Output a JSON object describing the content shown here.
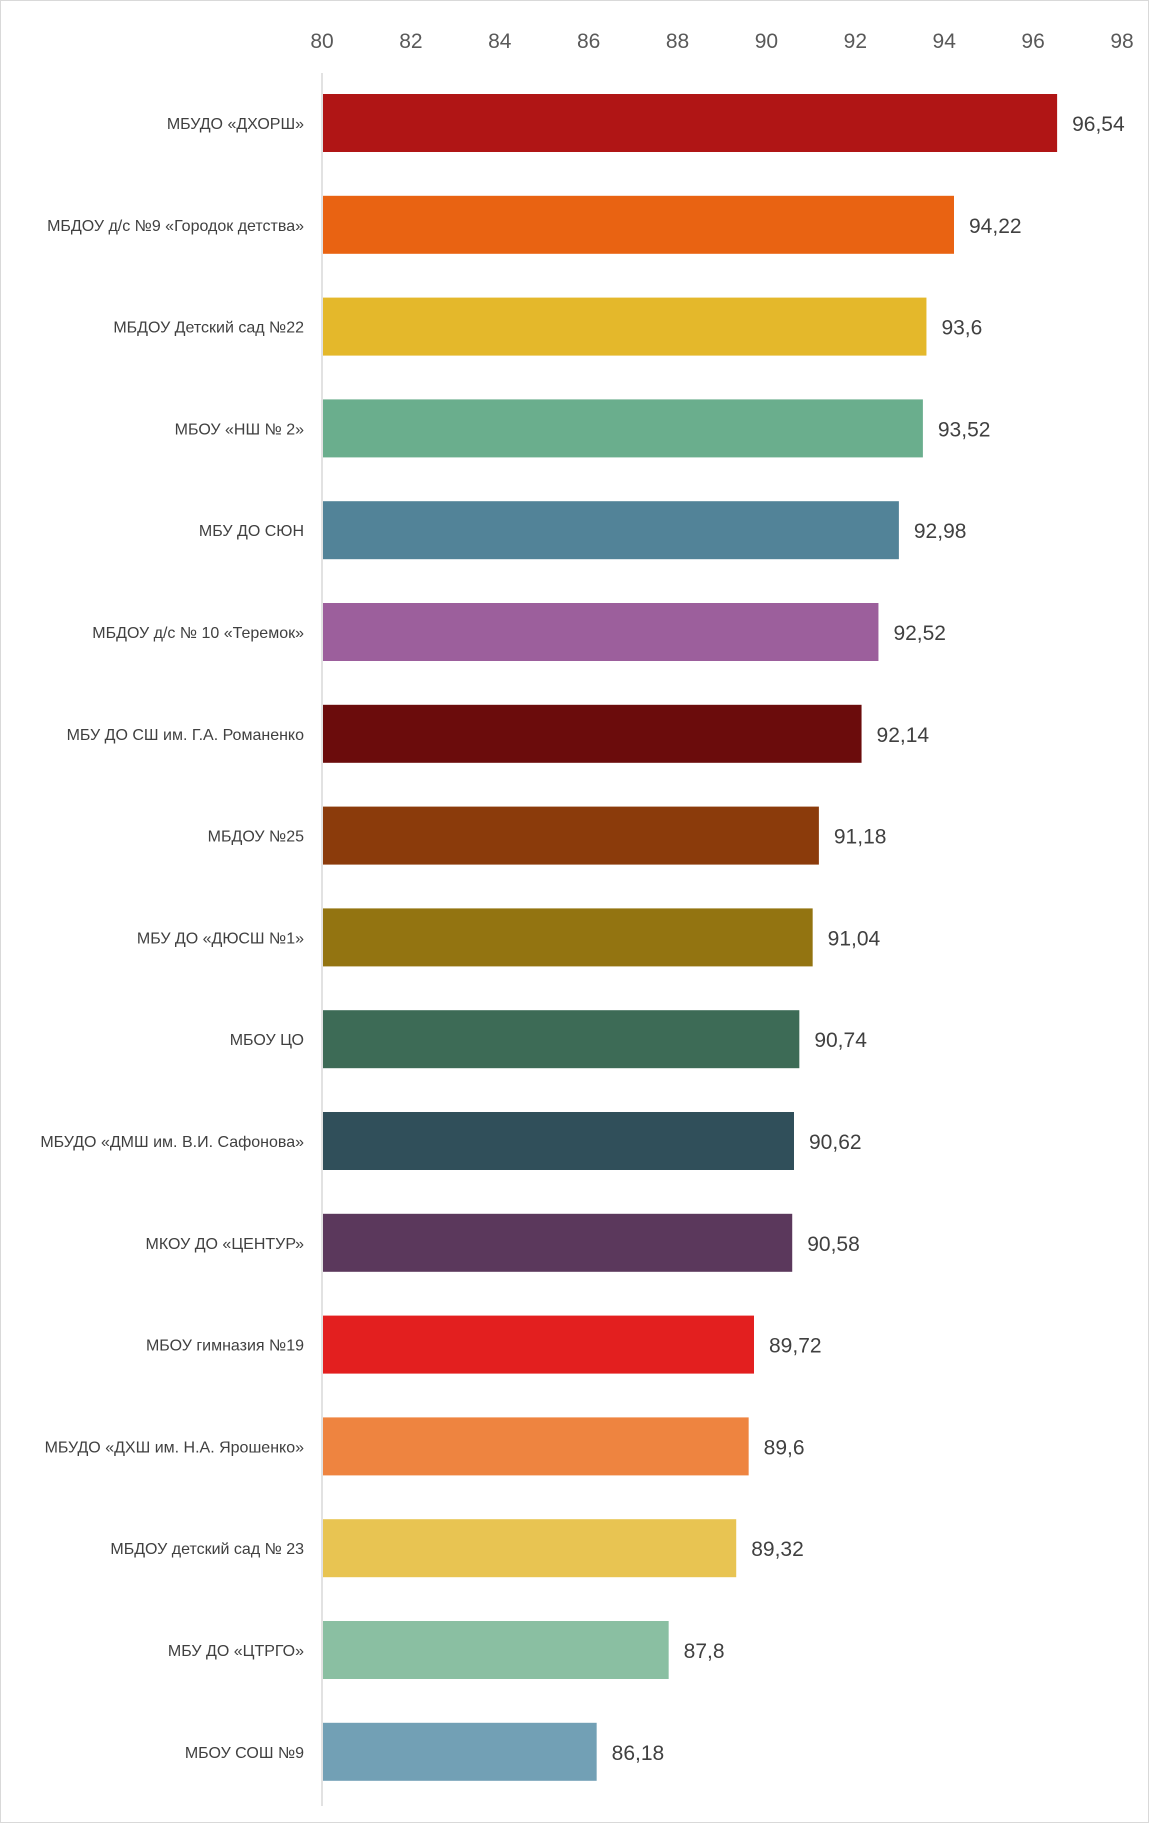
{
  "chart_data": {
    "type": "bar",
    "orientation": "horizontal",
    "title": "",
    "xlabel": "",
    "ylabel": "",
    "xlim": [
      80,
      98
    ],
    "x_ticks": [
      80,
      82,
      84,
      86,
      88,
      90,
      92,
      94,
      96,
      98
    ],
    "x_tick_labels": [
      "80",
      "82",
      "84",
      "86",
      "88",
      "90",
      "92",
      "94",
      "96",
      "98"
    ],
    "axis_position": "top",
    "grid": false,
    "legend": "none",
    "categories": [
      "МБУДО «ДХОРШ»",
      "МБДОУ д/с №9 «Городок детства»",
      "МБДОУ Детский сад №22",
      "МБОУ «НШ № 2»",
      "МБУ ДО СЮН",
      "МБДОУ д/с № 10 «Теремок»",
      "МБУ ДО СШ им. Г.А. Романенко",
      "МБДОУ №25",
      "МБУ ДО «ДЮСШ №1»",
      "МБОУ ЦО",
      "МБУДО «ДМШ им. В.И. Сафонова»",
      "МКОУ ДО «ЦЕНТУР»",
      "МБОУ гимназия №19",
      "МБУДО «ДХШ им. Н.А. Ярошенко»",
      "МБДОУ детский сад № 23",
      "МБУ ДО «ЦТРГО»",
      "МБОУ СОШ №9"
    ],
    "values": [
      96.54,
      94.22,
      93.6,
      93.52,
      92.98,
      92.52,
      92.14,
      91.18,
      91.04,
      90.74,
      90.62,
      90.58,
      89.72,
      89.6,
      89.32,
      87.8,
      86.18
    ],
    "value_labels": [
      "96,54",
      "94,22",
      "93,6",
      "93,52",
      "92,98",
      "92,52",
      "92,14",
      "91,18",
      "91,04",
      "90,74",
      "90,62",
      "90,58",
      "89,72",
      "89,6",
      "89,32",
      "87,8",
      "86,18"
    ],
    "colors": [
      "#b01515",
      "#e96312",
      "#e4b82b",
      "#6aae8d",
      "#528398",
      "#9c5f9c",
      "#6b0c0c",
      "#8b3b0b",
      "#937411",
      "#3d6b56",
      "#304f5a",
      "#5b385c",
      "#e31f1f",
      "#ee8440",
      "#e8c452",
      "#8abfa2",
      "#72a0b5"
    ]
  }
}
